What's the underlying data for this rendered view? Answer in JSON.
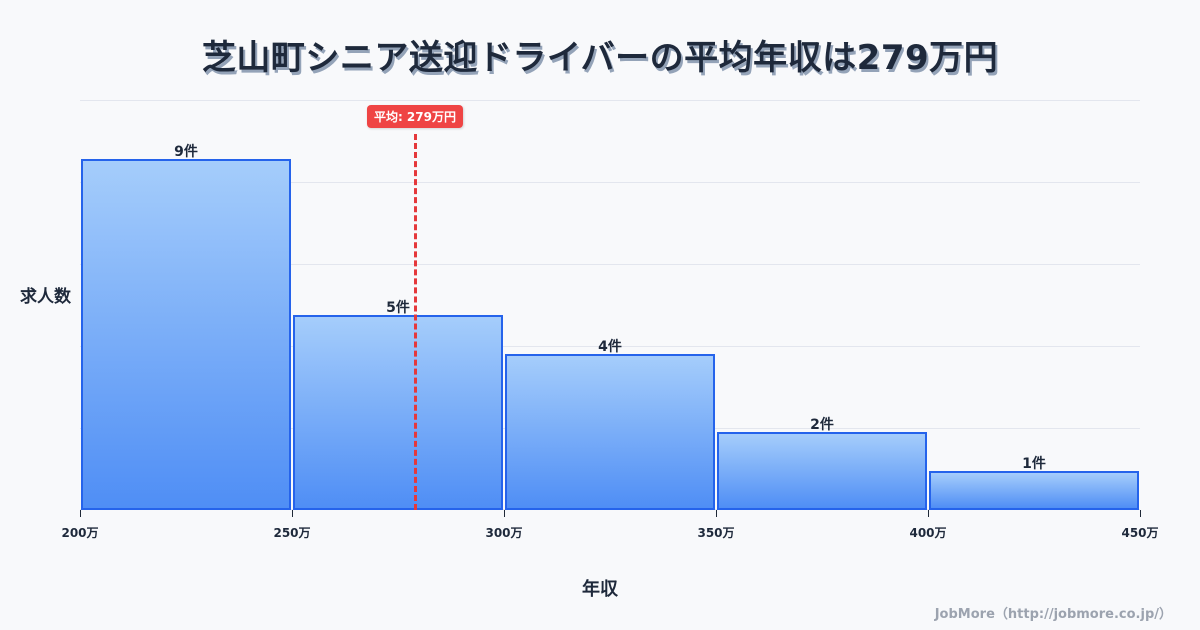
{
  "title": "芝山町シニア送迎ドライバーの平均年収は279万円",
  "axes": {
    "ylabel": "求人数",
    "xlabel": "年収"
  },
  "mean_badge": "平均: 279万円",
  "footer": "JobMore（http://jobmore.co.jp/）",
  "colors": {
    "bar_top": "#a5cdfb",
    "bar_bottom": "#4f8ef5",
    "bar_border": "#2563eb",
    "mean_line": "#e5383b",
    "title_text": "#1e293b"
  },
  "chart_data": {
    "type": "bar",
    "title": "芝山町シニア送迎ドライバーの平均年収は279万円",
    "xlabel": "年収",
    "ylabel": "求人数",
    "categories": [
      "200万-250万",
      "250万-300万",
      "300万-350万",
      "350万-400万",
      "400万-450万"
    ],
    "bin_edges": [
      200,
      250,
      300,
      350,
      400,
      450
    ],
    "values": [
      9,
      5,
      4,
      2,
      1
    ],
    "value_labels": [
      "9件",
      "5件",
      "4件",
      "2件",
      "1件"
    ],
    "x_tick_labels": [
      "200万",
      "250万",
      "300万",
      "350万",
      "400万",
      "450万"
    ],
    "xlim": [
      200,
      450
    ],
    "ylim": [
      0,
      10.5
    ],
    "grid": true,
    "annotations": [
      {
        "type": "vline",
        "x": 279,
        "label": "平均: 279万円",
        "style": "dashed",
        "color": "#e5383b"
      }
    ],
    "legend": null
  }
}
